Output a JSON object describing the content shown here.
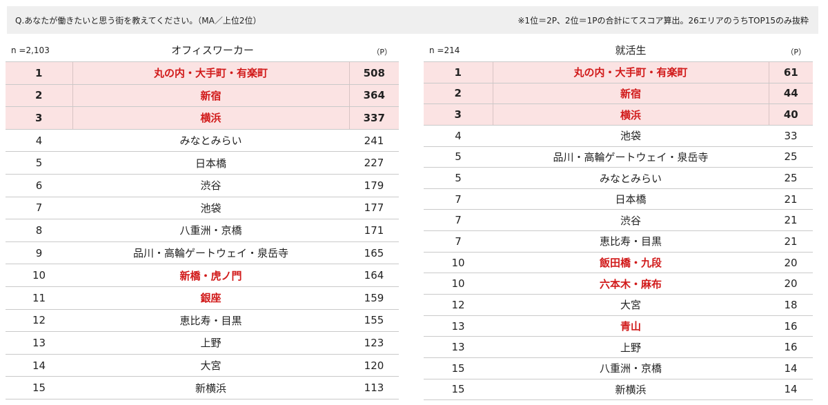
{
  "header": {
    "question": "Q.あなたが働きたいと思う街を教えてください。（MA／上位2位）",
    "note": "※1位＝2P、2位＝1Pの合計にてスコア算出。26エリアのうちTOP15のみ抜粋"
  },
  "left": {
    "n": "n =2,103",
    "title": "オフィスワーカー",
    "unit": "（P）",
    "rows": [
      {
        "rank": "1",
        "name": "丸の内・大手町・有楽町",
        "score": "508"
      },
      {
        "rank": "2",
        "name": "新宿",
        "score": "364"
      },
      {
        "rank": "3",
        "name": "横浜",
        "score": "337"
      },
      {
        "rank": "4",
        "name": "みなとみらい",
        "score": "241"
      },
      {
        "rank": "5",
        "name": "日本橋",
        "score": "227"
      },
      {
        "rank": "6",
        "name": "渋谷",
        "score": "179"
      },
      {
        "rank": "7",
        "name": "池袋",
        "score": "177"
      },
      {
        "rank": "8",
        "name": "八重洲・京橋",
        "score": "171"
      },
      {
        "rank": "9",
        "name": "品川・高輪ゲートウェイ・泉岳寺",
        "score": "165"
      },
      {
        "rank": "10",
        "name": "新橋・虎ノ門",
        "score": "164"
      },
      {
        "rank": "11",
        "name": "銀座",
        "score": "159"
      },
      {
        "rank": "12",
        "name": "恵比寿・目黒",
        "score": "155"
      },
      {
        "rank": "13",
        "name": "上野",
        "score": "123"
      },
      {
        "rank": "14",
        "name": "大宮",
        "score": "120"
      },
      {
        "rank": "15",
        "name": "新横浜",
        "score": "113"
      }
    ]
  },
  "right": {
    "n": "n =214",
    "title": "就活生",
    "unit": "（P）",
    "rows": [
      {
        "rank": "1",
        "name": "丸の内・大手町・有楽町",
        "score": "61"
      },
      {
        "rank": "2",
        "name": "新宿",
        "score": "44"
      },
      {
        "rank": "3",
        "name": "横浜",
        "score": "40"
      },
      {
        "rank": "4",
        "name": "池袋",
        "score": "33"
      },
      {
        "rank": "5",
        "name": "品川・高輪ゲートウェイ・泉岳寺",
        "score": "25"
      },
      {
        "rank": "5",
        "name": "みなとみらい",
        "score": "25"
      },
      {
        "rank": "7",
        "name": "日本橋",
        "score": "21"
      },
      {
        "rank": "7",
        "name": "渋谷",
        "score": "21"
      },
      {
        "rank": "7",
        "name": "恵比寿・目黒",
        "score": "21"
      },
      {
        "rank": "10",
        "name": "飯田橋・九段",
        "score": "20"
      },
      {
        "rank": "10",
        "name": "六本木・麻布",
        "score": "20"
      },
      {
        "rank": "12",
        "name": "大宮",
        "score": "18"
      },
      {
        "rank": "13",
        "name": "青山",
        "score": "16"
      },
      {
        "rank": "13",
        "name": "上野",
        "score": "16"
      },
      {
        "rank": "15",
        "name": "八重洲・京橋",
        "score": "14"
      },
      {
        "rank": "15",
        "name": "新横浜",
        "score": "14"
      }
    ]
  },
  "colors": {
    "highlight_bg": "#fbe3e3",
    "highlight_text": "#d11a1a",
    "header_bg": "#efefef"
  }
}
